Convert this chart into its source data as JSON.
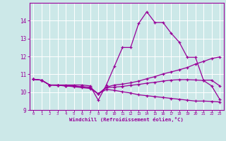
{
  "xlabel": "Windchill (Refroidissement éolien,°C)",
  "bg_color": "#cce8e8",
  "grid_color": "#ffffff",
  "line_color": "#990099",
  "xlim": [
    -0.5,
    23.5
  ],
  "ylim": [
    9.0,
    15.0
  ],
  "yticks": [
    9,
    10,
    11,
    12,
    13,
    14
  ],
  "xticks": [
    0,
    1,
    2,
    3,
    4,
    5,
    6,
    7,
    8,
    9,
    10,
    11,
    12,
    13,
    14,
    15,
    16,
    17,
    18,
    19,
    20,
    21,
    22,
    23
  ],
  "line1_x": [
    0,
    1,
    2,
    3,
    4,
    5,
    6,
    7,
    8,
    9,
    10,
    11,
    12,
    13,
    14,
    15,
    16,
    17,
    18,
    19,
    20,
    21,
    22,
    23
  ],
  "line1_y": [
    10.72,
    10.67,
    10.4,
    10.4,
    10.4,
    10.4,
    10.4,
    10.35,
    9.55,
    10.4,
    11.45,
    12.5,
    12.5,
    13.85,
    14.5,
    13.9,
    13.9,
    13.3,
    12.8,
    11.95,
    11.95,
    10.67,
    10.67,
    10.35
  ],
  "line2_x": [
    0,
    1,
    2,
    3,
    4,
    5,
    6,
    7,
    8,
    9,
    10,
    11,
    12,
    13,
    14,
    15,
    16,
    17,
    18,
    19,
    20,
    21,
    22,
    23
  ],
  "line2_y": [
    10.72,
    10.67,
    10.4,
    10.4,
    10.35,
    10.35,
    10.3,
    10.28,
    9.9,
    10.28,
    10.4,
    10.45,
    10.52,
    10.62,
    10.75,
    10.87,
    11.02,
    11.13,
    11.25,
    11.38,
    11.57,
    11.72,
    11.88,
    11.97
  ],
  "line3_x": [
    0,
    1,
    2,
    3,
    4,
    5,
    6,
    7,
    8,
    9,
    10,
    11,
    12,
    13,
    14,
    15,
    16,
    17,
    18,
    19,
    20,
    21,
    22,
    23
  ],
  "line3_y": [
    10.72,
    10.67,
    10.4,
    10.38,
    10.35,
    10.33,
    10.3,
    10.25,
    9.9,
    10.25,
    10.28,
    10.32,
    10.38,
    10.43,
    10.5,
    10.55,
    10.62,
    10.67,
    10.7,
    10.7,
    10.68,
    10.65,
    10.35,
    9.6
  ],
  "line4_x": [
    0,
    1,
    2,
    3,
    4,
    5,
    6,
    7,
    8,
    9,
    10,
    11,
    12,
    13,
    14,
    15,
    16,
    17,
    18,
    19,
    20,
    21,
    22,
    23
  ],
  "line4_y": [
    10.72,
    10.67,
    10.4,
    10.38,
    10.35,
    10.3,
    10.25,
    10.2,
    9.9,
    10.15,
    10.1,
    10.02,
    9.95,
    9.85,
    9.8,
    9.75,
    9.7,
    9.65,
    9.6,
    9.55,
    9.5,
    9.5,
    9.48,
    9.45
  ]
}
